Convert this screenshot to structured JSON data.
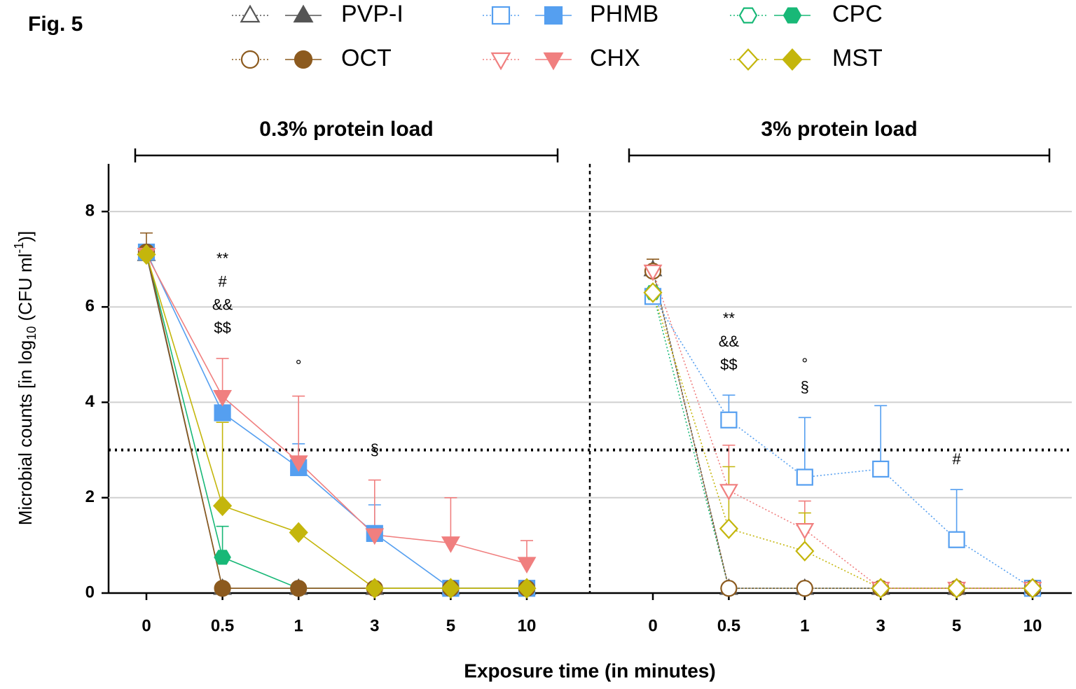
{
  "chart_data": {
    "type": "line",
    "title": "Fig. 5",
    "x_label": "Exposure time (in minutes)",
    "y_label": [
      "Microbial counts [in log",
      "10",
      " (CFU ml",
      "-1",
      ")]"
    ],
    "ylim": [
      0,
      9
    ],
    "yticks": [
      0,
      2,
      4,
      6,
      8
    ],
    "grid": true,
    "threshold": 3,
    "series": [
      {
        "name": "PVP-I",
        "color": "#555555",
        "marker": "triangle-up"
      },
      {
        "name": "PHMB",
        "color": "#559ff0",
        "marker": "square"
      },
      {
        "name": "CPC",
        "color": "#18b877",
        "marker": "hexagon"
      },
      {
        "name": "OCT",
        "color": "#8c5a1e",
        "marker": "circle"
      },
      {
        "name": "CHX",
        "color": "#f07f7f",
        "marker": "triangle-down"
      },
      {
        "name": "MST",
        "color": "#c4b60c",
        "marker": "diamond"
      }
    ],
    "panels": [
      {
        "label": "0.3% protein load",
        "fill": "filled",
        "line_style": "solid",
        "categories": [
          "0",
          "0.5",
          "1",
          "3",
          "5",
          "10"
        ],
        "data": [
          {
            "values": [
              7.1,
              0.1,
              0.1,
              0.1,
              0.1,
              0.1
            ],
            "errors": [
              null,
              null,
              null,
              null,
              null,
              null
            ]
          },
          {
            "values": [
              7.15,
              3.78,
              2.63,
              1.25,
              0.1,
              0.1
            ],
            "errors": [
              null,
              null,
              0.5,
              0.6,
              null,
              null
            ]
          },
          {
            "values": [
              7.15,
              0.75,
              0.1,
              0.1,
              0.1,
              0.1
            ],
            "errors": [
              null,
              0.65,
              null,
              null,
              null,
              null
            ]
          },
          {
            "values": [
              7.15,
              0.1,
              0.1,
              0.1,
              0.1,
              0.1
            ],
            "errors": [
              0.4,
              null,
              null,
              null,
              null,
              null
            ]
          },
          {
            "values": [
              7.1,
              4.12,
              2.75,
              1.22,
              1.05,
              0.62
            ],
            "errors": [
              null,
              0.8,
              1.38,
              1.15,
              0.95,
              0.48
            ]
          },
          {
            "values": [
              7.1,
              1.83,
              1.27,
              0.1,
              0.1,
              0.1
            ],
            "errors": [
              null,
              1.75,
              null,
              null,
              null,
              null
            ]
          }
        ],
        "annotations": [
          {
            "category": "0.5",
            "lines": [
              "**",
              "#",
              "&&",
              "$$"
            ]
          },
          {
            "category": "1",
            "lines": [
              "°"
            ]
          },
          {
            "category": "3",
            "lines": [
              "§"
            ]
          }
        ]
      },
      {
        "label": "3% protein load",
        "fill": "open",
        "line_style": "dotted",
        "categories": [
          "0",
          "0.5",
          "1",
          "3",
          "5",
          "10"
        ],
        "data": [
          {
            "values": [
              6.78,
              0.1,
              0.1,
              0.1,
              0.1,
              0.1
            ],
            "errors": [
              null,
              null,
              null,
              null,
              null,
              null
            ]
          },
          {
            "values": [
              6.22,
              3.63,
              2.43,
              2.6,
              1.12,
              0.1
            ],
            "errors": [
              null,
              0.52,
              1.25,
              1.33,
              1.05,
              null
            ]
          },
          {
            "values": [
              6.3,
              0.1,
              0.1,
              0.1,
              0.1,
              0.1
            ],
            "errors": [
              null,
              null,
              null,
              null,
              null,
              null
            ]
          },
          {
            "values": [
              6.75,
              0.1,
              0.1,
              0.1,
              0.1,
              0.1
            ],
            "errors": [
              0.25,
              null,
              null,
              null,
              null,
              null
            ]
          },
          {
            "values": [
              6.75,
              2.15,
              1.33,
              0.1,
              0.1,
              0.1
            ],
            "errors": [
              null,
              0.95,
              0.6,
              null,
              null,
              null
            ]
          },
          {
            "values": [
              6.3,
              1.35,
              0.88,
              0.1,
              0.1,
              0.1
            ],
            "errors": [
              null,
              1.3,
              0.8,
              null,
              null,
              null
            ]
          }
        ],
        "annotations": [
          {
            "category": "0.5",
            "lines": [
              "**",
              "&&",
              "$$"
            ]
          },
          {
            "category": "1",
            "lines": [
              "°",
              "§"
            ]
          },
          {
            "category": "5",
            "lines": [
              "#"
            ]
          }
        ]
      }
    ]
  }
}
